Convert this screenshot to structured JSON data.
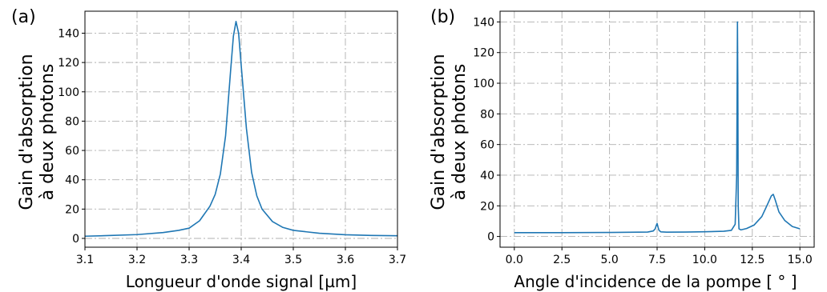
{
  "chart_data": [
    {
      "type": "line",
      "panel_label": "(a)",
      "title": "",
      "xlabel": "Longueur d'onde signal [µm]",
      "ylabel": [
        "Gain d'absorption",
        "à deux photons"
      ],
      "xlim": [
        3.1,
        3.7
      ],
      "ylim": [
        -6,
        155
      ],
      "xticks": [
        3.1,
        3.2,
        3.3,
        3.4,
        3.5,
        3.6,
        3.7
      ],
      "xtick_labels": [
        "3.1",
        "3.2",
        "3.3",
        "3.4",
        "3.5",
        "3.6",
        "3.7"
      ],
      "yticks": [
        0,
        20,
        40,
        60,
        80,
        100,
        120,
        140
      ],
      "ytick_labels": [
        "0",
        "20",
        "40",
        "60",
        "80",
        "100",
        "120",
        "140"
      ],
      "grid": true,
      "color": "#1f77b4",
      "series": [
        {
          "x": [
            3.1,
            3.15,
            3.2,
            3.25,
            3.28,
            3.3,
            3.32,
            3.34,
            3.35,
            3.36,
            3.37,
            3.38,
            3.385,
            3.39,
            3.395,
            3.4,
            3.41,
            3.42,
            3.43,
            3.44,
            3.46,
            3.48,
            3.5,
            3.55,
            3.6,
            3.65,
            3.7
          ],
          "y": [
            1.5,
            2.0,
            2.6,
            4.0,
            5.5,
            7.0,
            12,
            22,
            30,
            44,
            70,
            116,
            138,
            148,
            140,
            118,
            75,
            45,
            29,
            20,
            11.5,
            7.5,
            5.5,
            3.5,
            2.5,
            2.0,
            1.8
          ]
        }
      ]
    },
    {
      "type": "line",
      "panel_label": "(b)",
      "title": "",
      "xlabel": "Angle d'incidence de la pompe [ ° ]",
      "ylabel": [
        "Gain d'absorption",
        "à deux photons"
      ],
      "xlim": [
        -0.75,
        15.75
      ],
      "ylim": [
        -7,
        147
      ],
      "xticks": [
        0,
        2.5,
        5,
        7.5,
        10,
        12.5,
        15
      ],
      "xtick_labels": [
        "0.0",
        "2.5",
        "5.0",
        "7.5",
        "10.0",
        "12.5",
        "15.0"
      ],
      "yticks": [
        0,
        20,
        40,
        60,
        80,
        100,
        120,
        140
      ],
      "ytick_labels": [
        "0",
        "20",
        "40",
        "60",
        "80",
        "100",
        "120",
        "140"
      ],
      "grid": true,
      "color": "#1f77b4",
      "series": [
        {
          "x": [
            0,
            2.5,
            5.0,
            7.0,
            7.3,
            7.4,
            7.45,
            7.5,
            7.55,
            7.6,
            7.7,
            8.0,
            9.0,
            10.0,
            11.0,
            11.4,
            11.6,
            11.68,
            11.72,
            11.74,
            11.76,
            11.8,
            11.9,
            12.2,
            12.6,
            13.0,
            13.3,
            13.5,
            13.6,
            13.7,
            13.9,
            14.2,
            14.6,
            15.0
          ],
          "y": [
            2.5,
            2.5,
            2.6,
            2.9,
            3.6,
            5.0,
            7.0,
            8.5,
            6.0,
            4.0,
            3.0,
            2.8,
            2.9,
            3.1,
            3.4,
            4.0,
            8.0,
            40,
            140,
            100,
            20,
            5.0,
            4.3,
            5.2,
            7.5,
            13,
            21,
            26.5,
            27.5,
            24,
            16,
            10.5,
            6.5,
            5.0
          ]
        }
      ]
    }
  ]
}
